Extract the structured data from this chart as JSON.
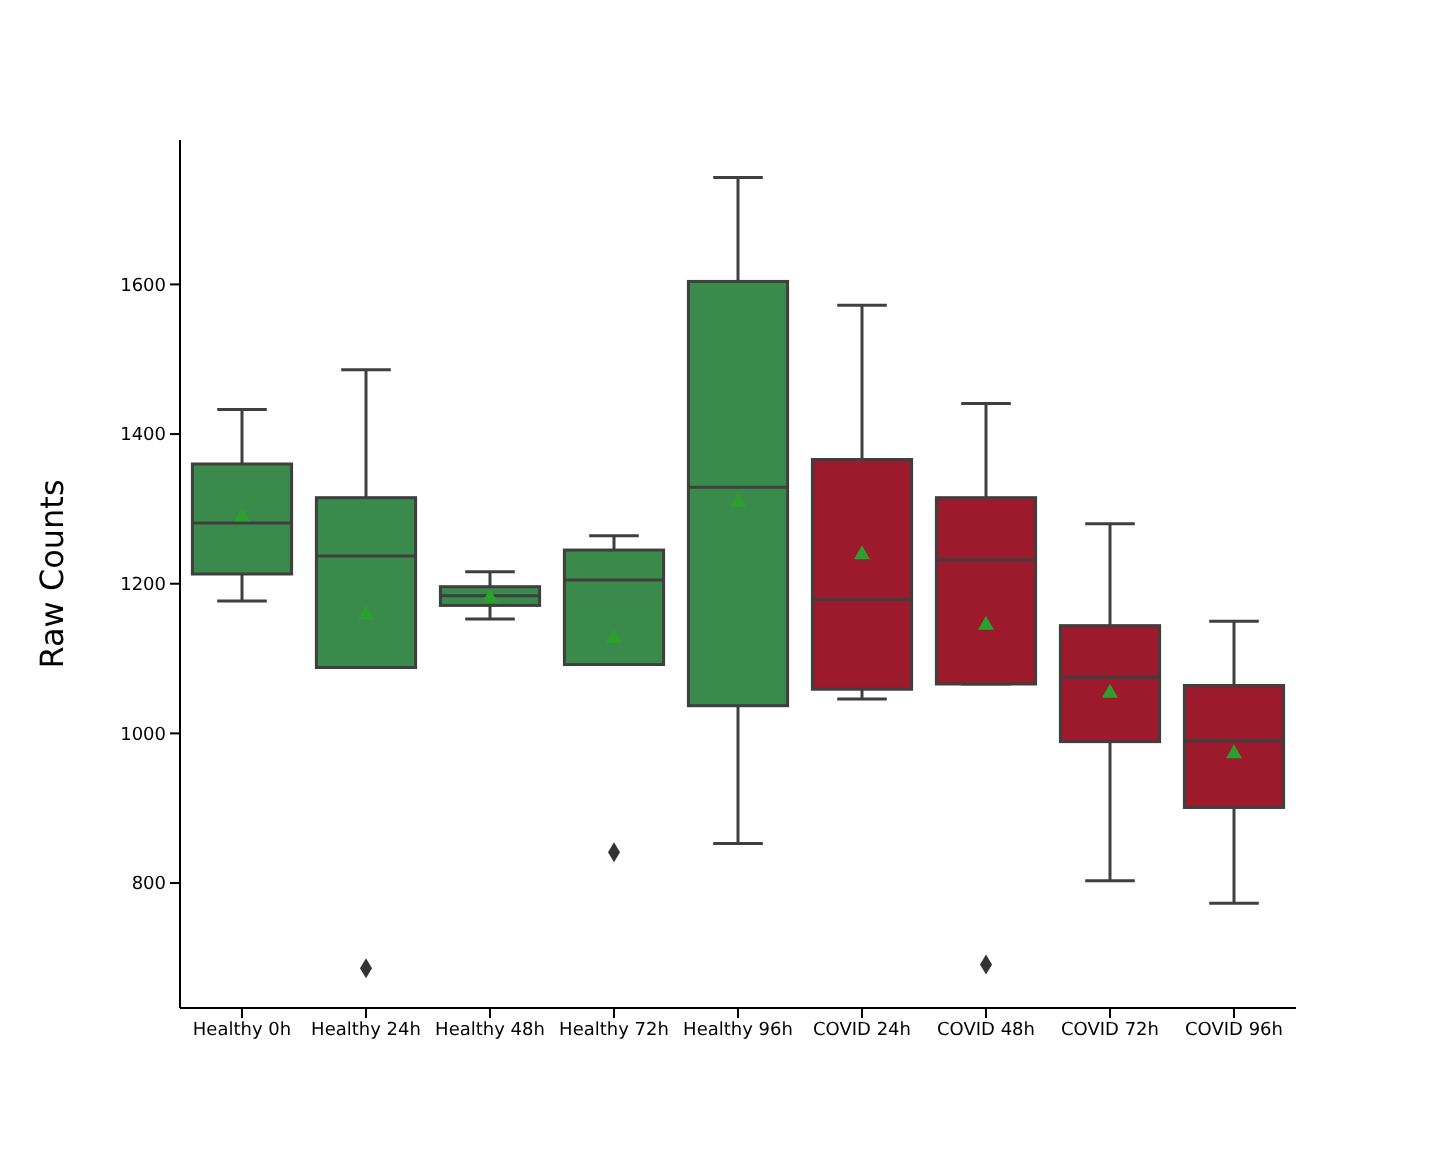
{
  "chart_data": {
    "type": "box",
    "ylabel": "Raw Counts",
    "categories": [
      "Healthy 0h",
      "Healthy 24h",
      "Healthy 48h",
      "Healthy 72h",
      "Healthy 96h",
      "COVID 24h",
      "COVID 48h",
      "COVID 72h",
      "COVID 96h"
    ],
    "colors": [
      "#3a8a4c",
      "#3a8a4c",
      "#3a8a4c",
      "#3a8a4c",
      "#3a8a4c",
      "#9c1a2b",
      "#9c1a2b",
      "#9c1a2b",
      "#9c1a2b"
    ],
    "boxes": [
      {
        "low": 1177,
        "q1": 1213,
        "median": 1281,
        "q3": 1360,
        "high": 1433,
        "mean": 1293
      },
      {
        "low": 1088,
        "q1": 1088,
        "median": 1237,
        "q3": 1315,
        "high": 1486,
        "mean": 1162,
        "outliers": [
          686
        ]
      },
      {
        "low": 1153,
        "q1": 1171,
        "median": 1184,
        "q3": 1196,
        "high": 1216,
        "mean": 1184
      },
      {
        "low": 1092,
        "q1": 1092,
        "median": 1205,
        "q3": 1245,
        "high": 1264,
        "mean": 1130,
        "outliers": [
          841
        ]
      },
      {
        "low": 853,
        "q1": 1037,
        "median": 1329,
        "q3": 1604,
        "high": 1743,
        "mean": 1312
      },
      {
        "low": 1046,
        "q1": 1059,
        "median": 1179,
        "q3": 1366,
        "high": 1572,
        "mean": 1242
      },
      {
        "low": 1066,
        "q1": 1066,
        "median": 1232,
        "q3": 1315,
        "high": 1441,
        "mean": 1148,
        "outliers": [
          691
        ]
      },
      {
        "low": 803,
        "q1": 989,
        "median": 1075,
        "q3": 1144,
        "high": 1280,
        "mean": 1057
      },
      {
        "low": 773,
        "q1": 901,
        "median": 990,
        "q3": 1064,
        "high": 1150,
        "mean": 976
      }
    ],
    "ylim": [
      633,
      1793
    ],
    "yticks": [
      800,
      1000,
      1200,
      1400,
      1600
    ],
    "grid": false,
    "legend": false
  }
}
